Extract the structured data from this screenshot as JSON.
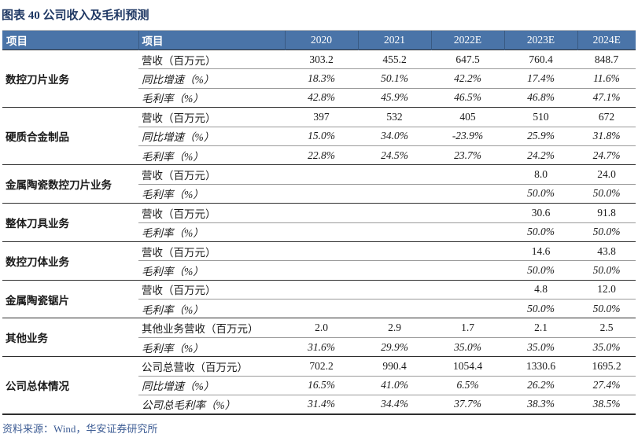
{
  "title": "图表 40 公司收入及毛利预测",
  "table": {
    "header": {
      "col1": "项目",
      "col2": "项目",
      "years": [
        "2020",
        "2021",
        "2022E",
        "2023E",
        "2024E"
      ]
    },
    "groups": [
      {
        "name": "数控刀片业务",
        "rows": [
          {
            "label": "营收（百万元）",
            "italic": false,
            "values": [
              "303.2",
              "455.2",
              "647.5",
              "760.4",
              "848.7"
            ]
          },
          {
            "label": "同比增速（%）",
            "italic": true,
            "values": [
              "18.3%",
              "50.1%",
              "42.2%",
              "17.4%",
              "11.6%"
            ]
          },
          {
            "label": "毛利率（%）",
            "italic": true,
            "values": [
              "42.8%",
              "45.9%",
              "46.5%",
              "46.8%",
              "47.1%"
            ]
          }
        ]
      },
      {
        "name": "硬质合金制品",
        "rows": [
          {
            "label": "营收（百万元）",
            "italic": false,
            "values": [
              "397",
              "532",
              "405",
              "510",
              "672"
            ]
          },
          {
            "label": "同比增速（%）",
            "italic": true,
            "values": [
              "15.0%",
              "34.0%",
              "-23.9%",
              "25.9%",
              "31.8%"
            ]
          },
          {
            "label": "毛利率（%）",
            "italic": true,
            "values": [
              "22.8%",
              "24.5%",
              "23.7%",
              "24.2%",
              "24.7%"
            ]
          }
        ]
      },
      {
        "name": "金属陶瓷数控刀片业务",
        "rows": [
          {
            "label": "营收（百万元）",
            "italic": false,
            "values": [
              "",
              "",
              "",
              "8.0",
              "24.0"
            ]
          },
          {
            "label": "毛利率（%）",
            "italic": true,
            "values": [
              "",
              "",
              "",
              "50.0%",
              "50.0%"
            ]
          }
        ]
      },
      {
        "name": "整体刀具业务",
        "rows": [
          {
            "label": "营收（百万元）",
            "italic": false,
            "values": [
              "",
              "",
              "",
              "30.6",
              "91.8"
            ]
          },
          {
            "label": "毛利率（%）",
            "italic": true,
            "values": [
              "",
              "",
              "",
              "50.0%",
              "50.0%"
            ]
          }
        ]
      },
      {
        "name": "数控刀体业务",
        "rows": [
          {
            "label": "营收（百万元）",
            "italic": false,
            "values": [
              "",
              "",
              "",
              "14.6",
              "43.8"
            ]
          },
          {
            "label": "毛利率（%）",
            "italic": true,
            "values": [
              "",
              "",
              "",
              "50.0%",
              "50.0%"
            ]
          }
        ]
      },
      {
        "name": "金属陶瓷锯片",
        "rows": [
          {
            "label": "营收（百万元）",
            "italic": false,
            "values": [
              "",
              "",
              "",
              "4.8",
              "12.0"
            ]
          },
          {
            "label": "毛利率（%）",
            "italic": true,
            "values": [
              "",
              "",
              "",
              "50.0%",
              "50.0%"
            ]
          }
        ]
      },
      {
        "name": "其他业务",
        "rows": [
          {
            "label": "其他业务营收（百万元）",
            "italic": false,
            "values": [
              "2.0",
              "2.9",
              "1.7",
              "2.1",
              "2.5"
            ]
          },
          {
            "label": "毛利率（%）",
            "italic": true,
            "values": [
              "31.6%",
              "29.9%",
              "35.0%",
              "35.0%",
              "35.0%"
            ]
          }
        ]
      },
      {
        "name": "公司总体情况",
        "rows": [
          {
            "label": "公司总营收（百万元）",
            "italic": false,
            "values": [
              "702.2",
              "990.4",
              "1054.4",
              "1330.6",
              "1695.2"
            ]
          },
          {
            "label": "同比增速（%）",
            "italic": true,
            "values": [
              "16.5%",
              "41.0%",
              "6.5%",
              "26.2%",
              "27.4%"
            ]
          },
          {
            "label": "公司总毛利率（%）",
            "italic": true,
            "values": [
              "31.4%",
              "34.4%",
              "37.7%",
              "38.3%",
              "38.5%"
            ]
          }
        ]
      }
    ]
  },
  "footer": {
    "source": "资料来源：Wind，华安证券研究所"
  },
  "colors": {
    "header_bg": "#4A74A8",
    "header_text": "#FFFFFF",
    "title_text": "#1F3864",
    "source_text": "#3D5C94",
    "group_line": "#2E2E2E",
    "sub_line": "#9A9A9A"
  }
}
